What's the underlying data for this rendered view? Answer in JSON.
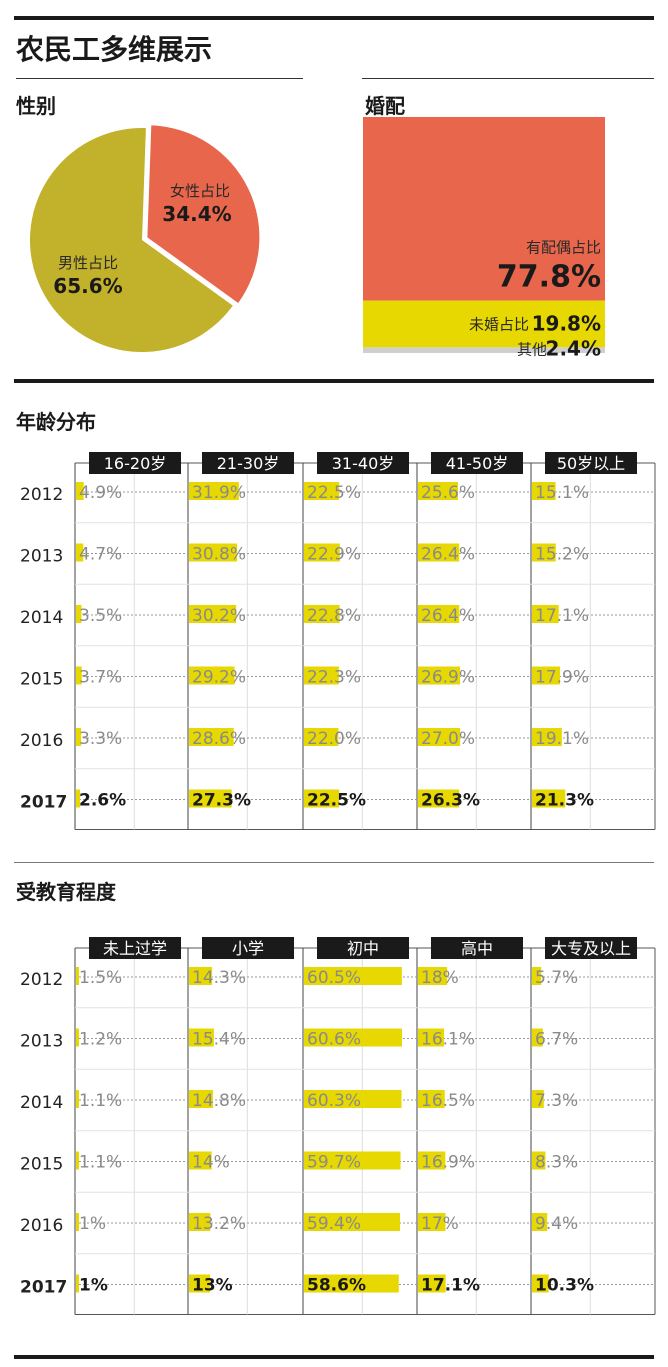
{
  "page_title": "农民工多维展示",
  "colors": {
    "yellow": "#e6d800",
    "olive": "#c2b12a",
    "coral": "#e8664b",
    "gray": "#cfcfcf",
    "dark": "#1a1a1a"
  },
  "gender": {
    "heading": "性别",
    "chart_data": {
      "type": "pie",
      "categories": [
        "女性占比",
        "男性占比"
      ],
      "values": [
        34.4,
        65.6
      ],
      "value_labels": [
        "34.4%",
        "65.6%"
      ]
    }
  },
  "marriage": {
    "heading": "婚配",
    "chart_data": {
      "type": "bar",
      "categories": [
        "有配偶占比",
        "未婚占比",
        "其他"
      ],
      "values": [
        77.8,
        19.8,
        2.4
      ],
      "value_labels": [
        "77.8%",
        "19.8%",
        "2.4%"
      ]
    }
  },
  "age": {
    "heading": "年龄分布",
    "chart_data": {
      "type": "bar",
      "categories": [
        "2012",
        "2013",
        "2014",
        "2015",
        "2016",
        "2017"
      ],
      "series": [
        {
          "name": "16-20岁",
          "values": [
            4.9,
            4.7,
            3.5,
            3.7,
            3.3,
            2.6
          ],
          "labels": [
            "4.9%",
            "4.7%",
            "3.5%",
            "3.7%",
            "3.3%",
            "2.6%"
          ]
        },
        {
          "name": "21-30岁",
          "values": [
            31.9,
            30.8,
            30.2,
            29.2,
            28.6,
            27.3
          ],
          "labels": [
            "31.9%",
            "30.8%",
            "30.2%",
            "29.2%",
            "28.6%",
            "27.3%"
          ]
        },
        {
          "name": "31-40岁",
          "values": [
            22.5,
            22.9,
            22.8,
            22.3,
            22.0,
            22.5
          ],
          "labels": [
            "22.5%",
            "22.9%",
            "22.8%",
            "22.3%",
            "22.0%",
            "22.5%"
          ]
        },
        {
          "name": "41-50岁",
          "values": [
            25.6,
            26.4,
            26.4,
            26.9,
            27.0,
            26.3
          ],
          "labels": [
            "25.6%",
            "26.4%",
            "26.4%",
            "26.9%",
            "27.0%",
            "26.3%"
          ]
        },
        {
          "name": "50岁以上",
          "values": [
            15.1,
            15.2,
            17.1,
            17.9,
            19.1,
            21.3
          ],
          "labels": [
            "15.1%",
            "15.2%",
            "17.1%",
            "17.9%",
            "19.1%",
            "21.3%"
          ]
        }
      ]
    }
  },
  "education": {
    "heading": "受教育程度",
    "chart_data": {
      "type": "bar",
      "categories": [
        "2012",
        "2013",
        "2014",
        "2015",
        "2016",
        "2017"
      ],
      "series": [
        {
          "name": "未上过学",
          "values": [
            1.5,
            1.2,
            1.1,
            1.1,
            1,
            1
          ],
          "labels": [
            "1.5%",
            "1.2%",
            "1.1%",
            "1.1%",
            "1%",
            "1%"
          ]
        },
        {
          "name": "小学",
          "values": [
            14.3,
            15.4,
            14.8,
            14,
            13.2,
            13
          ],
          "labels": [
            "14.3%",
            "15.4%",
            "14.8%",
            "14%",
            "13.2%",
            "13%"
          ]
        },
        {
          "name": "初中",
          "values": [
            60.5,
            60.6,
            60.3,
            59.7,
            59.4,
            58.6
          ],
          "labels": [
            "60.5%",
            "60.6%",
            "60.3%",
            "59.7%",
            "59.4%",
            "58.6%"
          ]
        },
        {
          "name": "高中",
          "values": [
            18,
            16.1,
            16.5,
            16.9,
            17,
            17.1
          ],
          "labels": [
            "18%",
            "16.1%",
            "16.5%",
            "16.9%",
            "17%",
            "17.1%"
          ]
        },
        {
          "name": "大专及以上",
          "values": [
            5.7,
            6.7,
            7.3,
            8.3,
            9.4,
            10.3
          ],
          "labels": [
            "5.7%",
            "6.7%",
            "7.3%",
            "8.3%",
            "9.4%",
            "10.3%"
          ]
        }
      ]
    }
  }
}
